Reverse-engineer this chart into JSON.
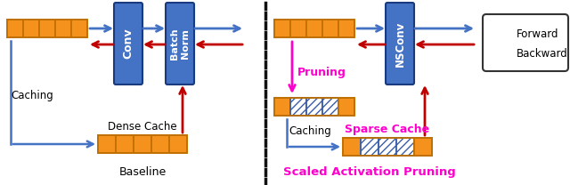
{
  "bg_color": "#ffffff",
  "orange_color": "#F5921E",
  "blue_block_color": "#4472C4",
  "blue_arrow_color": "#4472C4",
  "red_arrow_color": "#C00000",
  "magenta_color": "#FF00CC",
  "text_color": "#000000",
  "title_left": "Baseline",
  "title_right": "Scaled Activation Pruning",
  "label_forward": "Forward",
  "label_backward": "Backward",
  "label_conv": "Conv",
  "label_bn": "Batch\nNorm",
  "label_nsconv": "NSConv",
  "label_caching_left": "Caching",
  "label_dense": "Dense Cache",
  "label_pruning": "Pruning",
  "label_caching_right": "Caching",
  "label_sparse": "Sparse Cache"
}
